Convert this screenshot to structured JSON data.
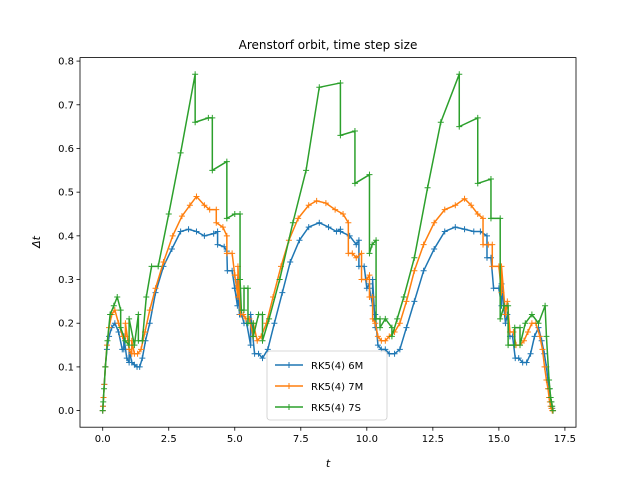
{
  "chart_data": {
    "type": "line",
    "title": "Arenstorf orbit, time step size",
    "xlabel": "t",
    "ylabel": "Δt",
    "xlim": [
      -0.86,
      17.92
    ],
    "ylim": [
      -0.038,
      0.808
    ],
    "xticks": [
      0.0,
      2.5,
      5.0,
      7.5,
      10.0,
      12.5,
      15.0,
      17.5
    ],
    "xtick_labels": [
      "0.0",
      "2.5",
      "5.0",
      "7.5",
      "10.0",
      "12.5",
      "15.0",
      "17.5"
    ],
    "yticks": [
      0.0,
      0.1,
      0.2,
      0.3,
      0.4,
      0.5,
      0.6,
      0.7,
      0.8
    ],
    "ytick_labels": [
      "0.0",
      "0.1",
      "0.2",
      "0.3",
      "0.4",
      "0.5",
      "0.6",
      "0.7",
      "0.8"
    ],
    "grid": false,
    "legend_position": "bottom-center",
    "marker": "+",
    "series": [
      {
        "name": "RK5(4) 6M",
        "color": "#1f77b4",
        "x": [
          0.0,
          0.01,
          0.03,
          0.06,
          0.1,
          0.16,
          0.24,
          0.34,
          0.46,
          0.6,
          0.74,
          0.8,
          0.8,
          0.91,
          1.0,
          1.0,
          1.1,
          1.2,
          1.3,
          1.4,
          1.5,
          1.62,
          1.78,
          2.0,
          2.3,
          2.62,
          2.95,
          3.25,
          3.55,
          3.85,
          4.2,
          4.35,
          4.35,
          4.6,
          4.7,
          4.72,
          4.9,
          5.0,
          5.0,
          5.1,
          5.1,
          5.18,
          5.26,
          5.35,
          5.45,
          5.6,
          5.6,
          5.75,
          5.9,
          6.05,
          6.25,
          6.5,
          6.8,
          7.1,
          7.45,
          7.8,
          8.2,
          8.55,
          8.85,
          9.0,
          9.0,
          9.35,
          9.6,
          9.7,
          9.7,
          9.9,
          10.0,
          10.1,
          10.1,
          10.22,
          10.22,
          10.32,
          10.32,
          10.42,
          10.55,
          10.7,
          10.85,
          11.05,
          11.25,
          11.5,
          11.8,
          12.15,
          12.55,
          12.95,
          13.35,
          13.7,
          14.05,
          14.3,
          14.55,
          14.55,
          14.7,
          14.8,
          15.0,
          15.1,
          15.1,
          15.25,
          15.32,
          15.42,
          15.52,
          15.62,
          15.75,
          15.9,
          16.05,
          16.2,
          16.35,
          16.5,
          16.62,
          16.72,
          16.8,
          16.86,
          16.9,
          16.93,
          16.96,
          16.99,
          17.02,
          17.05
        ],
        "y": [
          0.0,
          0.01,
          0.03,
          0.06,
          0.1,
          0.14,
          0.17,
          0.19,
          0.2,
          0.18,
          0.14,
          0.14,
          0.17,
          0.12,
          0.11,
          0.14,
          0.11,
          0.105,
          0.1,
          0.1,
          0.12,
          0.16,
          0.2,
          0.27,
          0.33,
          0.37,
          0.41,
          0.415,
          0.41,
          0.4,
          0.405,
          0.41,
          0.38,
          0.375,
          0.365,
          0.32,
          0.32,
          0.28,
          0.28,
          0.24,
          0.3,
          0.22,
          0.22,
          0.2,
          0.2,
          0.15,
          0.22,
          0.13,
          0.13,
          0.12,
          0.14,
          0.2,
          0.27,
          0.34,
          0.39,
          0.42,
          0.43,
          0.42,
          0.41,
          0.415,
          0.41,
          0.4,
          0.38,
          0.39,
          0.33,
          0.33,
          0.28,
          0.29,
          0.28,
          0.24,
          0.3,
          0.19,
          0.22,
          0.15,
          0.14,
          0.14,
          0.13,
          0.13,
          0.14,
          0.19,
          0.25,
          0.32,
          0.37,
          0.41,
          0.42,
          0.415,
          0.41,
          0.41,
          0.4,
          0.35,
          0.35,
          0.28,
          0.28,
          0.24,
          0.29,
          0.2,
          0.22,
          0.17,
          0.17,
          0.12,
          0.12,
          0.11,
          0.11,
          0.13,
          0.17,
          0.19,
          0.16,
          0.13,
          0.1,
          0.07,
          0.05,
          0.03,
          0.02,
          0.01,
          0.005,
          0.0
        ]
      },
      {
        "name": "RK5(4) 7M",
        "color": "#ff7f0e",
        "x": [
          0.0,
          0.01,
          0.03,
          0.06,
          0.1,
          0.16,
          0.24,
          0.34,
          0.46,
          0.6,
          0.75,
          0.86,
          0.86,
          1.0,
          1.1,
          1.1,
          1.2,
          1.32,
          1.45,
          1.6,
          1.78,
          2.0,
          2.3,
          2.65,
          3.0,
          3.3,
          3.55,
          3.85,
          4.05,
          4.3,
          4.3,
          4.55,
          4.7,
          4.7,
          4.9,
          5.0,
          5.0,
          5.12,
          5.12,
          5.22,
          5.32,
          5.42,
          5.55,
          5.7,
          5.7,
          5.85,
          6.0,
          6.2,
          6.45,
          6.75,
          7.05,
          7.4,
          7.8,
          8.1,
          8.45,
          8.8,
          9.1,
          9.3,
          9.3,
          9.45,
          9.6,
          9.8,
          9.8,
          10.0,
          10.1,
          10.1,
          10.22,
          10.22,
          10.32,
          10.42,
          10.55,
          10.7,
          10.85,
          11.05,
          11.25,
          11.5,
          11.8,
          12.15,
          12.55,
          12.95,
          13.35,
          13.7,
          13.95,
          14.2,
          14.4,
          14.4,
          14.6,
          14.75,
          14.75,
          15.0,
          15.1,
          15.1,
          15.25,
          15.32,
          15.42,
          15.55,
          15.65,
          15.8,
          15.95,
          16.1,
          16.25,
          16.4,
          16.55,
          16.65,
          16.73,
          16.8,
          16.86,
          16.9,
          16.93,
          16.96,
          16.99,
          17.02,
          17.05
        ],
        "y": [
          0.0,
          0.01,
          0.03,
          0.06,
          0.1,
          0.15,
          0.19,
          0.22,
          0.23,
          0.2,
          0.17,
          0.17,
          0.2,
          0.14,
          0.13,
          0.16,
          0.13,
          0.13,
          0.14,
          0.18,
          0.23,
          0.28,
          0.34,
          0.4,
          0.445,
          0.47,
          0.49,
          0.47,
          0.46,
          0.46,
          0.43,
          0.42,
          0.4,
          0.36,
          0.36,
          0.31,
          0.31,
          0.26,
          0.33,
          0.22,
          0.22,
          0.21,
          0.21,
          0.17,
          0.2,
          0.16,
          0.17,
          0.2,
          0.26,
          0.33,
          0.39,
          0.44,
          0.47,
          0.48,
          0.475,
          0.46,
          0.45,
          0.43,
          0.36,
          0.36,
          0.35,
          0.36,
          0.3,
          0.3,
          0.31,
          0.26,
          0.26,
          0.21,
          0.2,
          0.17,
          0.16,
          0.16,
          0.17,
          0.18,
          0.2,
          0.25,
          0.32,
          0.38,
          0.43,
          0.46,
          0.47,
          0.485,
          0.47,
          0.45,
          0.44,
          0.38,
          0.38,
          0.38,
          0.33,
          0.33,
          0.27,
          0.33,
          0.22,
          0.25,
          0.18,
          0.18,
          0.15,
          0.15,
          0.16,
          0.18,
          0.2,
          0.2,
          0.17,
          0.14,
          0.1,
          0.07,
          0.05,
          0.03,
          0.02,
          0.01,
          0.005,
          0.0,
          0.0
        ]
      },
      {
        "name": "RK5(4) 7S",
        "color": "#2ca02c",
        "x": [
          0.0,
          0.02,
          0.05,
          0.1,
          0.18,
          0.28,
          0.42,
          0.55,
          0.68,
          0.68,
          0.85,
          1.0,
          1.0,
          1.2,
          1.35,
          1.35,
          1.5,
          1.65,
          1.85,
          2.1,
          2.5,
          2.95,
          3.5,
          3.5,
          4.0,
          4.15,
          4.15,
          4.7,
          4.7,
          5.0,
          5.2,
          5.2,
          5.25,
          5.35,
          5.35,
          5.5,
          5.5,
          5.7,
          5.7,
          5.9,
          6.05,
          6.05,
          6.3,
          6.7,
          7.2,
          7.7,
          8.2,
          9.0,
          9.0,
          9.55,
          9.55,
          10.1,
          10.1,
          10.2,
          10.35,
          10.35,
          10.5,
          10.5,
          10.7,
          10.95,
          10.95,
          11.15,
          11.4,
          11.8,
          12.3,
          12.8,
          13.5,
          13.5,
          14.2,
          14.2,
          14.7,
          14.7,
          15.05,
          15.05,
          15.2,
          15.35,
          15.35,
          15.6,
          15.6,
          15.8,
          15.8,
          16.0,
          16.25,
          16.5,
          16.75,
          16.8,
          16.9,
          16.93,
          16.96,
          16.99,
          17.02,
          17.05
        ],
        "y": [
          0.0,
          0.02,
          0.05,
          0.1,
          0.16,
          0.22,
          0.24,
          0.26,
          0.23,
          0.19,
          0.16,
          0.15,
          0.21,
          0.15,
          0.22,
          0.16,
          0.16,
          0.26,
          0.33,
          0.33,
          0.45,
          0.59,
          0.77,
          0.66,
          0.67,
          0.67,
          0.55,
          0.57,
          0.44,
          0.45,
          0.45,
          0.3,
          0.23,
          0.23,
          0.28,
          0.28,
          0.2,
          0.2,
          0.17,
          0.22,
          0.22,
          0.16,
          0.21,
          0.3,
          0.43,
          0.55,
          0.74,
          0.75,
          0.63,
          0.64,
          0.52,
          0.54,
          0.36,
          0.38,
          0.39,
          0.21,
          0.21,
          0.19,
          0.21,
          0.19,
          0.17,
          0.21,
          0.26,
          0.35,
          0.51,
          0.66,
          0.77,
          0.65,
          0.67,
          0.52,
          0.53,
          0.44,
          0.44,
          0.21,
          0.24,
          0.24,
          0.15,
          0.15,
          0.19,
          0.19,
          0.15,
          0.2,
          0.22,
          0.2,
          0.24,
          0.17,
          0.07,
          0.05,
          0.03,
          0.02,
          0.01,
          0.0
        ]
      }
    ]
  }
}
